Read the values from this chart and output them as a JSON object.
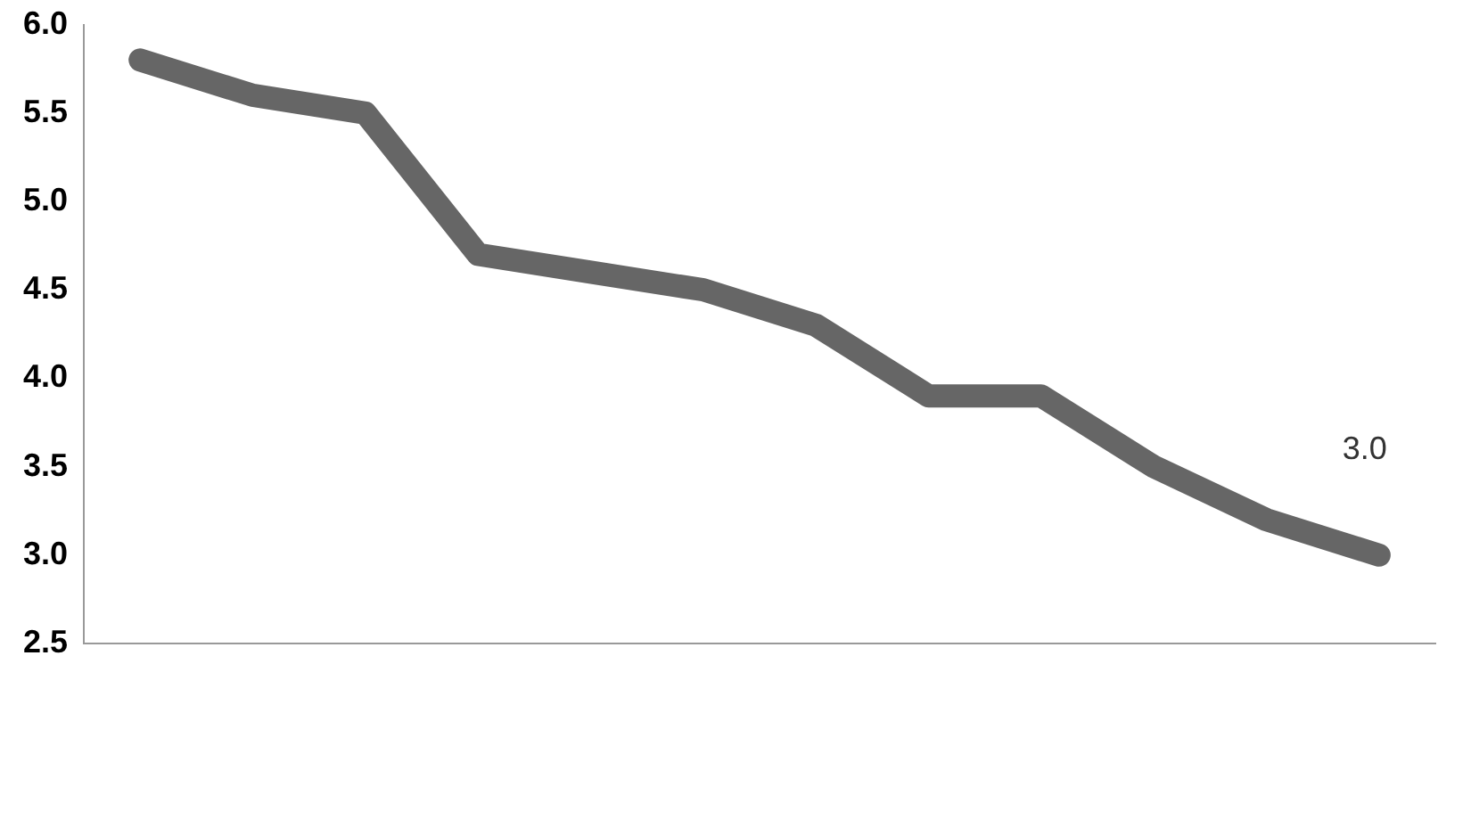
{
  "chart_data": {
    "type": "line",
    "categories": [
      null,
      null,
      null,
      null,
      null,
      null,
      null,
      null,
      null,
      null,
      null,
      null
    ],
    "series": [
      {
        "color": "#666666",
        "values": [
          5.8,
          5.6,
          5.5,
          4.7,
          4.6,
          4.5,
          4.3,
          3.9,
          3.9,
          3.5,
          3.2,
          3.0
        ],
        "value_labels": [
          null,
          null,
          null,
          null,
          null,
          null,
          null,
          null,
          null,
          null,
          null,
          "3.0"
        ]
      }
    ],
    "ylim": [
      2.5,
      6.0
    ],
    "yticks": [
      {
        "value": 2.5,
        "label": "2.5"
      },
      {
        "value": 3.0,
        "label": "3.0"
      },
      {
        "value": 3.5,
        "label": "3.5"
      },
      {
        "value": 4.0,
        "label": "4.0"
      },
      {
        "value": 4.5,
        "label": "4.5"
      },
      {
        "value": 5.0,
        "label": "5.0"
      },
      {
        "value": 5.5,
        "label": "5.5"
      },
      {
        "value": 6.0,
        "label": "6.0"
      }
    ],
    "grid": false,
    "legend": false,
    "marker": "none",
    "line_style": "solid",
    "tick_labels": "y"
  }
}
